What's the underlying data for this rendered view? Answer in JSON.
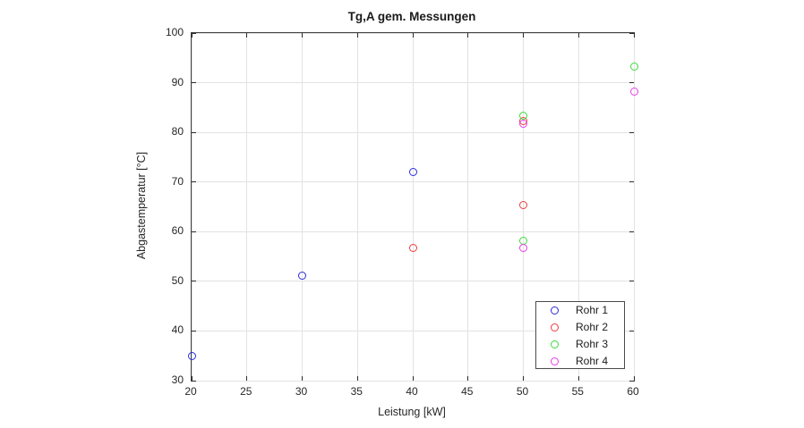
{
  "chart_data": {
    "type": "scatter",
    "title": "Tg,A gem. Messungen",
    "xlabel": "Leistung [kW]",
    "ylabel": "Abgastemperatur [°C]",
    "xlim": [
      20,
      60
    ],
    "ylim": [
      30,
      100
    ],
    "xticks": [
      20,
      25,
      30,
      35,
      40,
      45,
      50,
      55,
      60
    ],
    "yticks": [
      30,
      40,
      50,
      60,
      70,
      80,
      90,
      100
    ],
    "grid": true,
    "grid_color": "#e2e2e2",
    "axis_color": "#3f3f3f",
    "legend_position": "inside-bottom-right",
    "marker": "open-circle",
    "series": [
      {
        "name": "Rohr 1",
        "color": "#2b2bd9",
        "points": [
          [
            20,
            34.9
          ],
          [
            30,
            51.1
          ],
          [
            40,
            72.0
          ]
        ]
      },
      {
        "name": "Rohr 2",
        "color": "#ee3b3b",
        "points": [
          [
            40,
            56.8
          ],
          [
            50,
            65.4
          ],
          [
            50,
            82.2
          ]
        ]
      },
      {
        "name": "Rohr 3",
        "color": "#3bdb3b",
        "points": [
          [
            50,
            58.1
          ],
          [
            50,
            83.4
          ],
          [
            60,
            93.2
          ]
        ]
      },
      {
        "name": "Rohr 4",
        "color": "#e83be8",
        "points": [
          [
            50,
            56.7
          ],
          [
            50,
            81.7
          ],
          [
            60,
            88.2
          ]
        ]
      }
    ]
  }
}
